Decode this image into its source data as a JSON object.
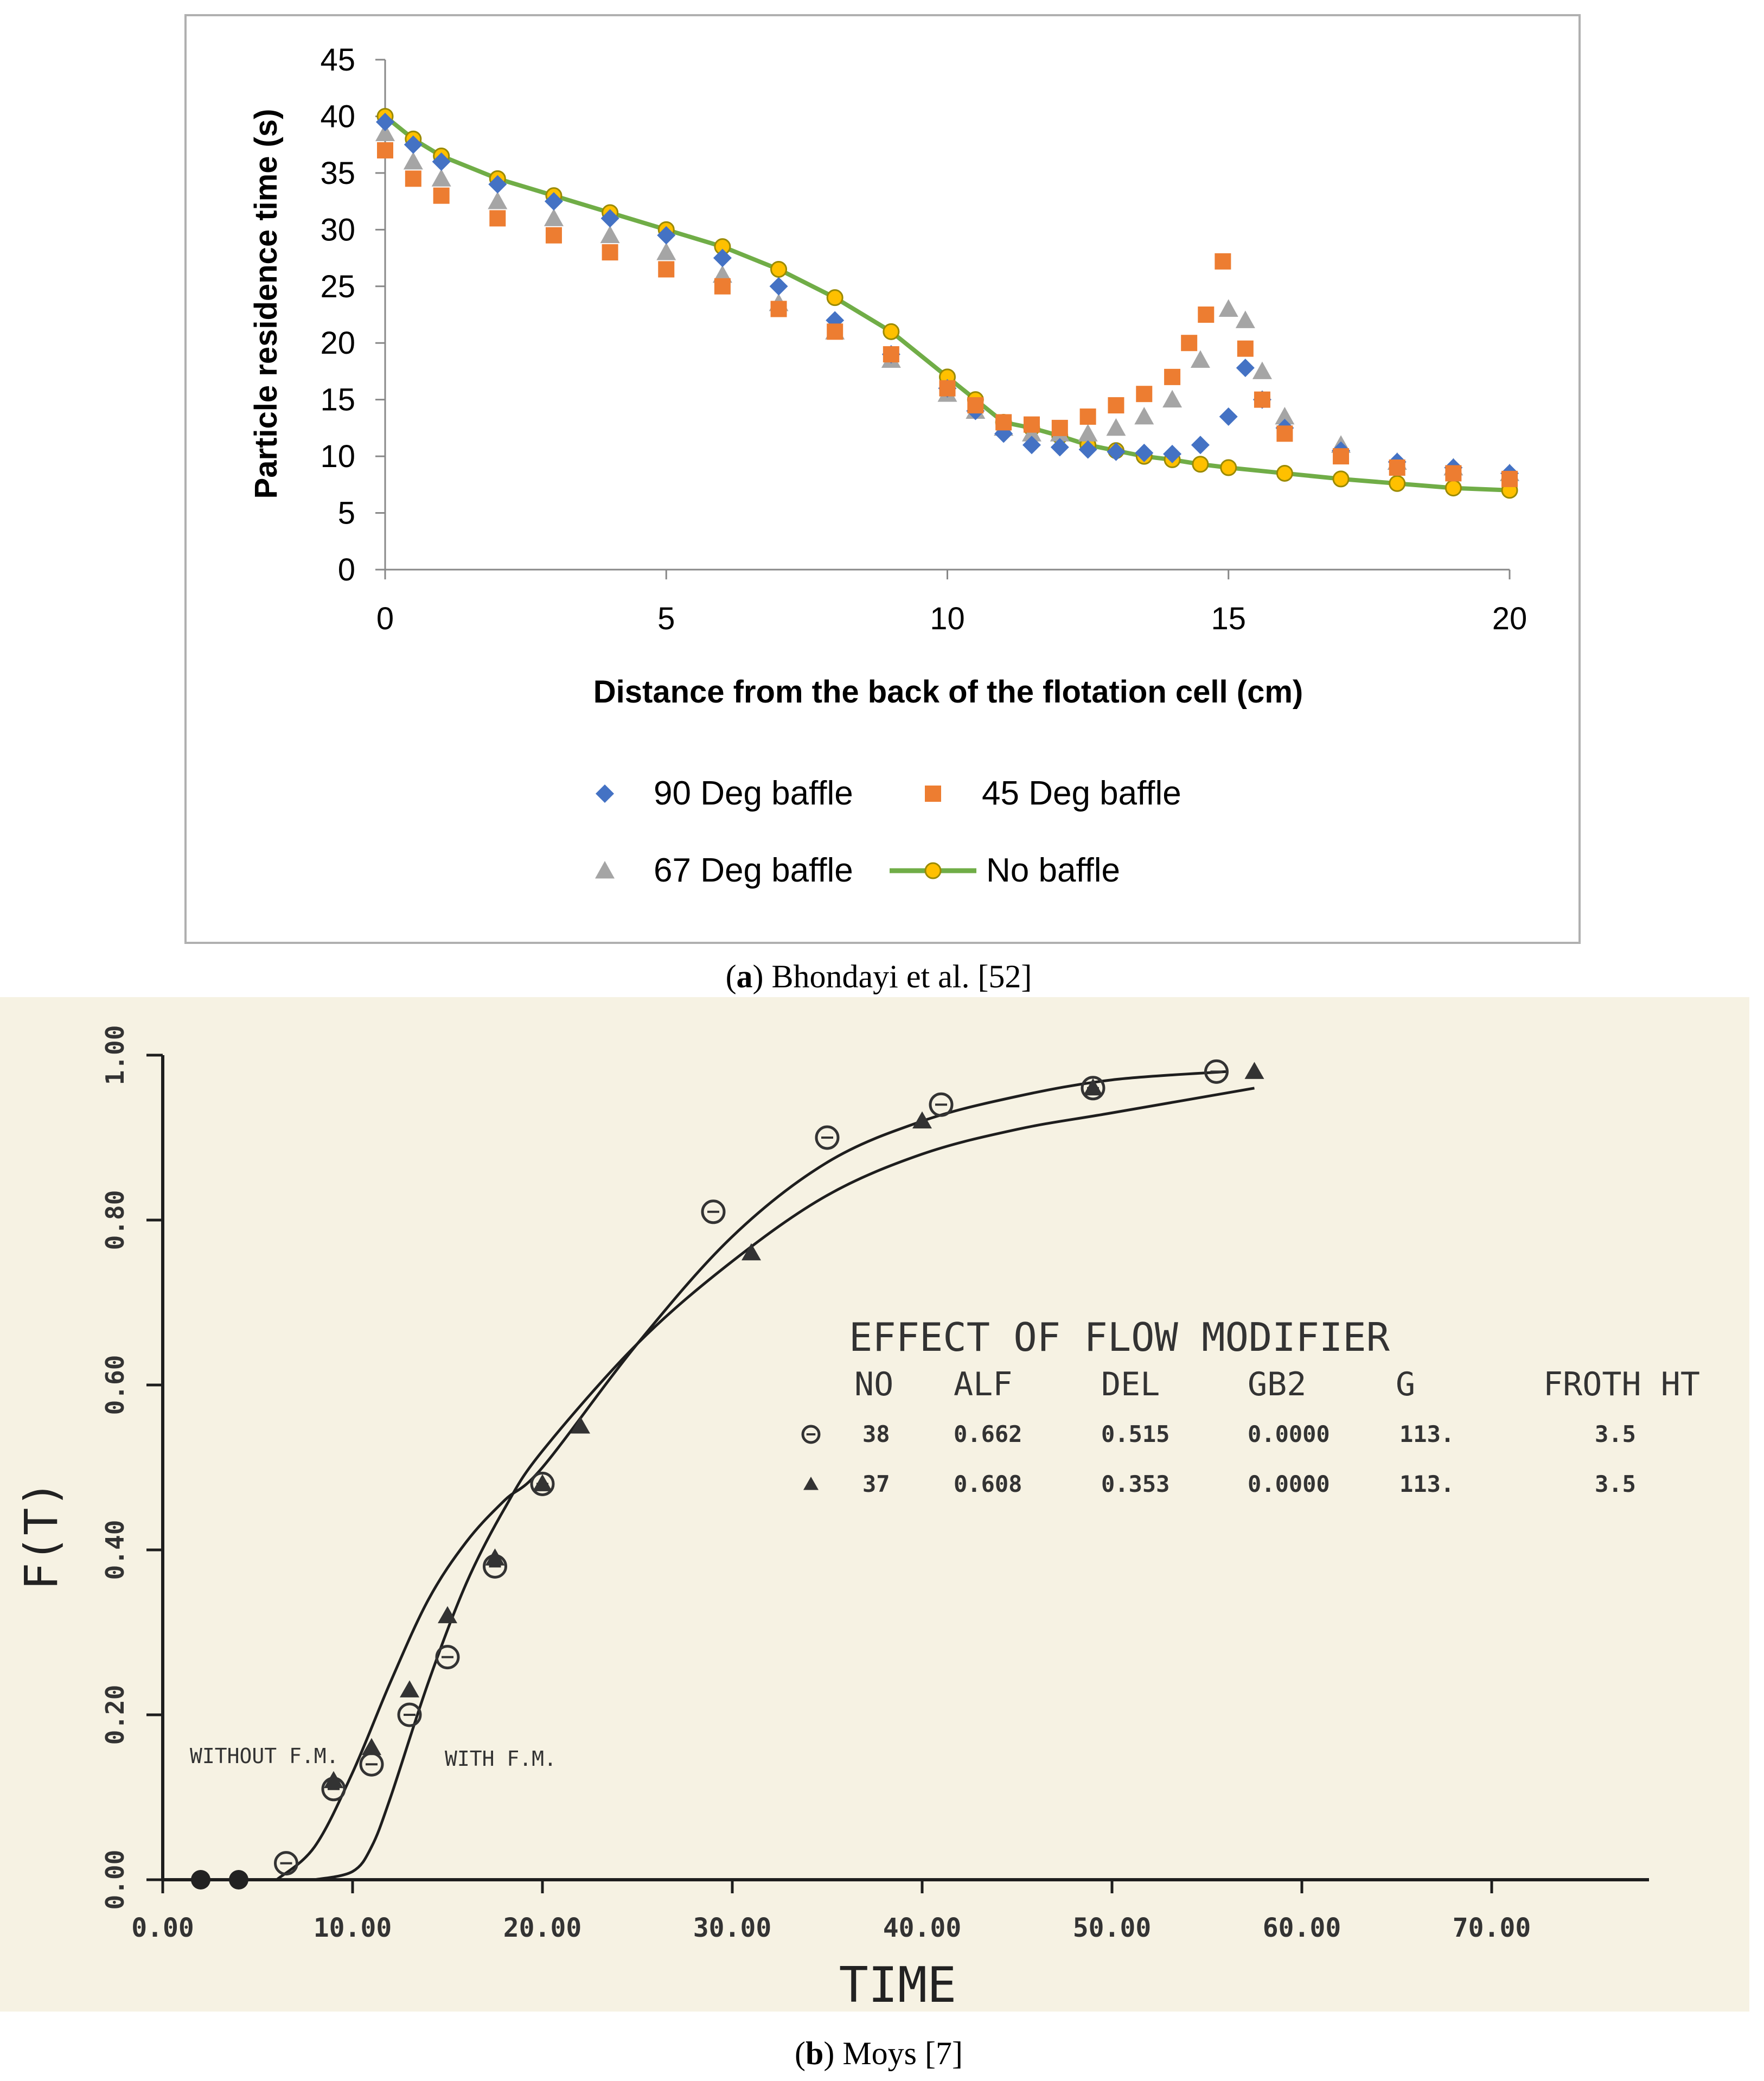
{
  "chart_data": [
    {
      "type": "scatter",
      "panel_label": "a",
      "caption": "Bhondayi et al. [52]",
      "xlabel": "Distance from the back of the flotation cell (cm)",
      "ylabel": "Particle residence time (s)",
      "xlim": [
        0,
        20
      ],
      "ylim": [
        0,
        45
      ],
      "xticks": [
        "0",
        "5",
        "10",
        "15",
        "20"
      ],
      "yticks": [
        "0",
        "5",
        "10",
        "15",
        "20",
        "25",
        "30",
        "35",
        "40",
        "45"
      ],
      "legend_position": "bottom",
      "grid": false,
      "series": [
        {
          "name": "90 Deg baffle",
          "marker": "diamond",
          "color": "#4472C4",
          "x": [
            0,
            0.5,
            1,
            2,
            3,
            4,
            5,
            6,
            7,
            8,
            9,
            10,
            10.5,
            11,
            11.5,
            12,
            12.5,
            13,
            13.5,
            14,
            14.5,
            15,
            15.3,
            15.6,
            16,
            17,
            18,
            19,
            20
          ],
          "y": [
            39.5,
            37.5,
            36,
            34,
            32.5,
            31,
            29.5,
            27.5,
            25,
            22,
            19,
            16,
            14,
            12,
            11,
            10.8,
            10.6,
            10.4,
            10.3,
            10.2,
            11,
            13.5,
            17.8,
            15,
            12.5,
            10.5,
            9.5,
            9,
            8.5
          ]
        },
        {
          "name": "45 Deg baffle",
          "marker": "square",
          "color": "#ED7D31",
          "x": [
            0,
            0.5,
            1,
            2,
            3,
            4,
            5,
            6,
            7,
            8,
            9,
            10,
            10.5,
            11,
            11.5,
            12,
            12.5,
            13,
            13.5,
            14,
            14.3,
            14.6,
            14.9,
            15.3,
            15.6,
            16,
            17,
            18,
            19,
            20
          ],
          "y": [
            37,
            34.5,
            33,
            31,
            29.5,
            28,
            26.5,
            25,
            23,
            21,
            19,
            16,
            14.5,
            13,
            12.8,
            12.5,
            13.5,
            14.5,
            15.5,
            17,
            20,
            22.5,
            27.2,
            19.5,
            15,
            12,
            10,
            9,
            8.5,
            8
          ]
        },
        {
          "name": "67 Deg baffle",
          "marker": "triangle",
          "color": "#A5A5A5",
          "x": [
            0,
            0.5,
            1,
            2,
            3,
            4,
            5,
            6,
            7,
            8,
            9,
            10,
            10.5,
            11,
            11.5,
            12,
            12.5,
            13,
            13.5,
            14,
            14.5,
            15,
            15.3,
            15.6,
            16,
            17,
            18,
            19,
            20
          ],
          "y": [
            38.5,
            36,
            34.5,
            32.5,
            31,
            29.5,
            28,
            26,
            23.5,
            21,
            18.5,
            15.5,
            14,
            12.5,
            12,
            12,
            12,
            12.5,
            13.5,
            15,
            18.5,
            23,
            22,
            17.5,
            13.5,
            11,
            9.5,
            9,
            8.5
          ]
        },
        {
          "name": "No baffle",
          "marker": "circle-line",
          "color": "#FFC000",
          "line_color": "#70AD47",
          "x": [
            0,
            0.5,
            1,
            2,
            3,
            4,
            5,
            6,
            7,
            8,
            9,
            10,
            10.5,
            11,
            11.5,
            12,
            12.5,
            13,
            13.5,
            14,
            14.5,
            15,
            16,
            17,
            18,
            19,
            20
          ],
          "y": [
            40,
            38,
            36.5,
            34.5,
            33,
            31.5,
            30,
            28.5,
            26.5,
            24,
            21,
            17,
            15,
            13,
            12.5,
            11.8,
            11,
            10.5,
            10,
            9.7,
            9.3,
            9,
            8.5,
            8,
            7.6,
            7.2,
            7
          ]
        }
      ]
    },
    {
      "type": "line",
      "panel_label": "b",
      "caption": "Moys [7]",
      "xlabel": "TIME",
      "ylabel": "F(T)",
      "xlim": [
        0,
        75
      ],
      "ylim": [
        0,
        1
      ],
      "xticks": [
        "0.00",
        "10.00",
        "20.00",
        "30.00",
        "40.00",
        "50.00",
        "60.00",
        "70.00"
      ],
      "yticks": [
        "0.00",
        "0.20",
        "0.40",
        "0.60",
        "0.80",
        "1.00"
      ],
      "title": "EFFECT OF FLOW MODIFIER",
      "table_headers": [
        "NO",
        "ALF",
        "DEL",
        "GB2",
        "G",
        "FROTH HT"
      ],
      "table_rows": [
        {
          "symbol": "circle",
          "values": [
            "38",
            "0.662",
            "0.515",
            "0.0000",
            "113.",
            "3.5"
          ]
        },
        {
          "symbol": "triangle",
          "values": [
            "37",
            "0.608",
            "0.353",
            "0.0000",
            "113.",
            "3.5"
          ]
        }
      ],
      "annotations": [
        {
          "text": "WITHOUT F.M.",
          "x": 5,
          "y": 0.16
        },
        {
          "text": "WITH F.M.",
          "x": 15,
          "y": 0.16
        }
      ],
      "series": [
        {
          "name": "38",
          "marker": "circle",
          "x": [
            2,
            4,
            6.5,
            9,
            11,
            13,
            15,
            17.5,
            20,
            29,
            35,
            41,
            49,
            55.5
          ],
          "y": [
            0,
            0,
            0.02,
            0.11,
            0.14,
            0.2,
            0.27,
            0.38,
            0.48,
            0.81,
            0.9,
            0.94,
            0.96,
            0.98
          ]
        },
        {
          "name": "37",
          "marker": "triangle",
          "x": [
            9,
            11,
            13,
            15,
            17.5,
            20,
            22,
            31,
            40,
            49,
            57.5
          ],
          "y": [
            0.12,
            0.16,
            0.23,
            0.32,
            0.39,
            0.48,
            0.55,
            0.76,
            0.92,
            0.96,
            0.98
          ]
        },
        {
          "name": "fit-without-fm",
          "x": [
            6,
            8,
            10,
            12,
            14,
            16,
            18,
            20,
            25,
            30,
            35,
            40,
            45,
            50,
            56
          ],
          "y": [
            0,
            0.04,
            0.13,
            0.24,
            0.34,
            0.41,
            0.46,
            0.5,
            0.65,
            0.78,
            0.87,
            0.92,
            0.95,
            0.97,
            0.98
          ]
        },
        {
          "name": "fit-with-fm",
          "x": [
            8,
            10,
            11,
            12,
            14,
            16,
            18,
            20,
            25,
            30,
            35,
            40,
            45,
            50,
            57.5
          ],
          "y": [
            0,
            0.01,
            0.04,
            0.1,
            0.24,
            0.36,
            0.45,
            0.52,
            0.65,
            0.75,
            0.83,
            0.88,
            0.91,
            0.93,
            0.96
          ]
        }
      ]
    }
  ]
}
